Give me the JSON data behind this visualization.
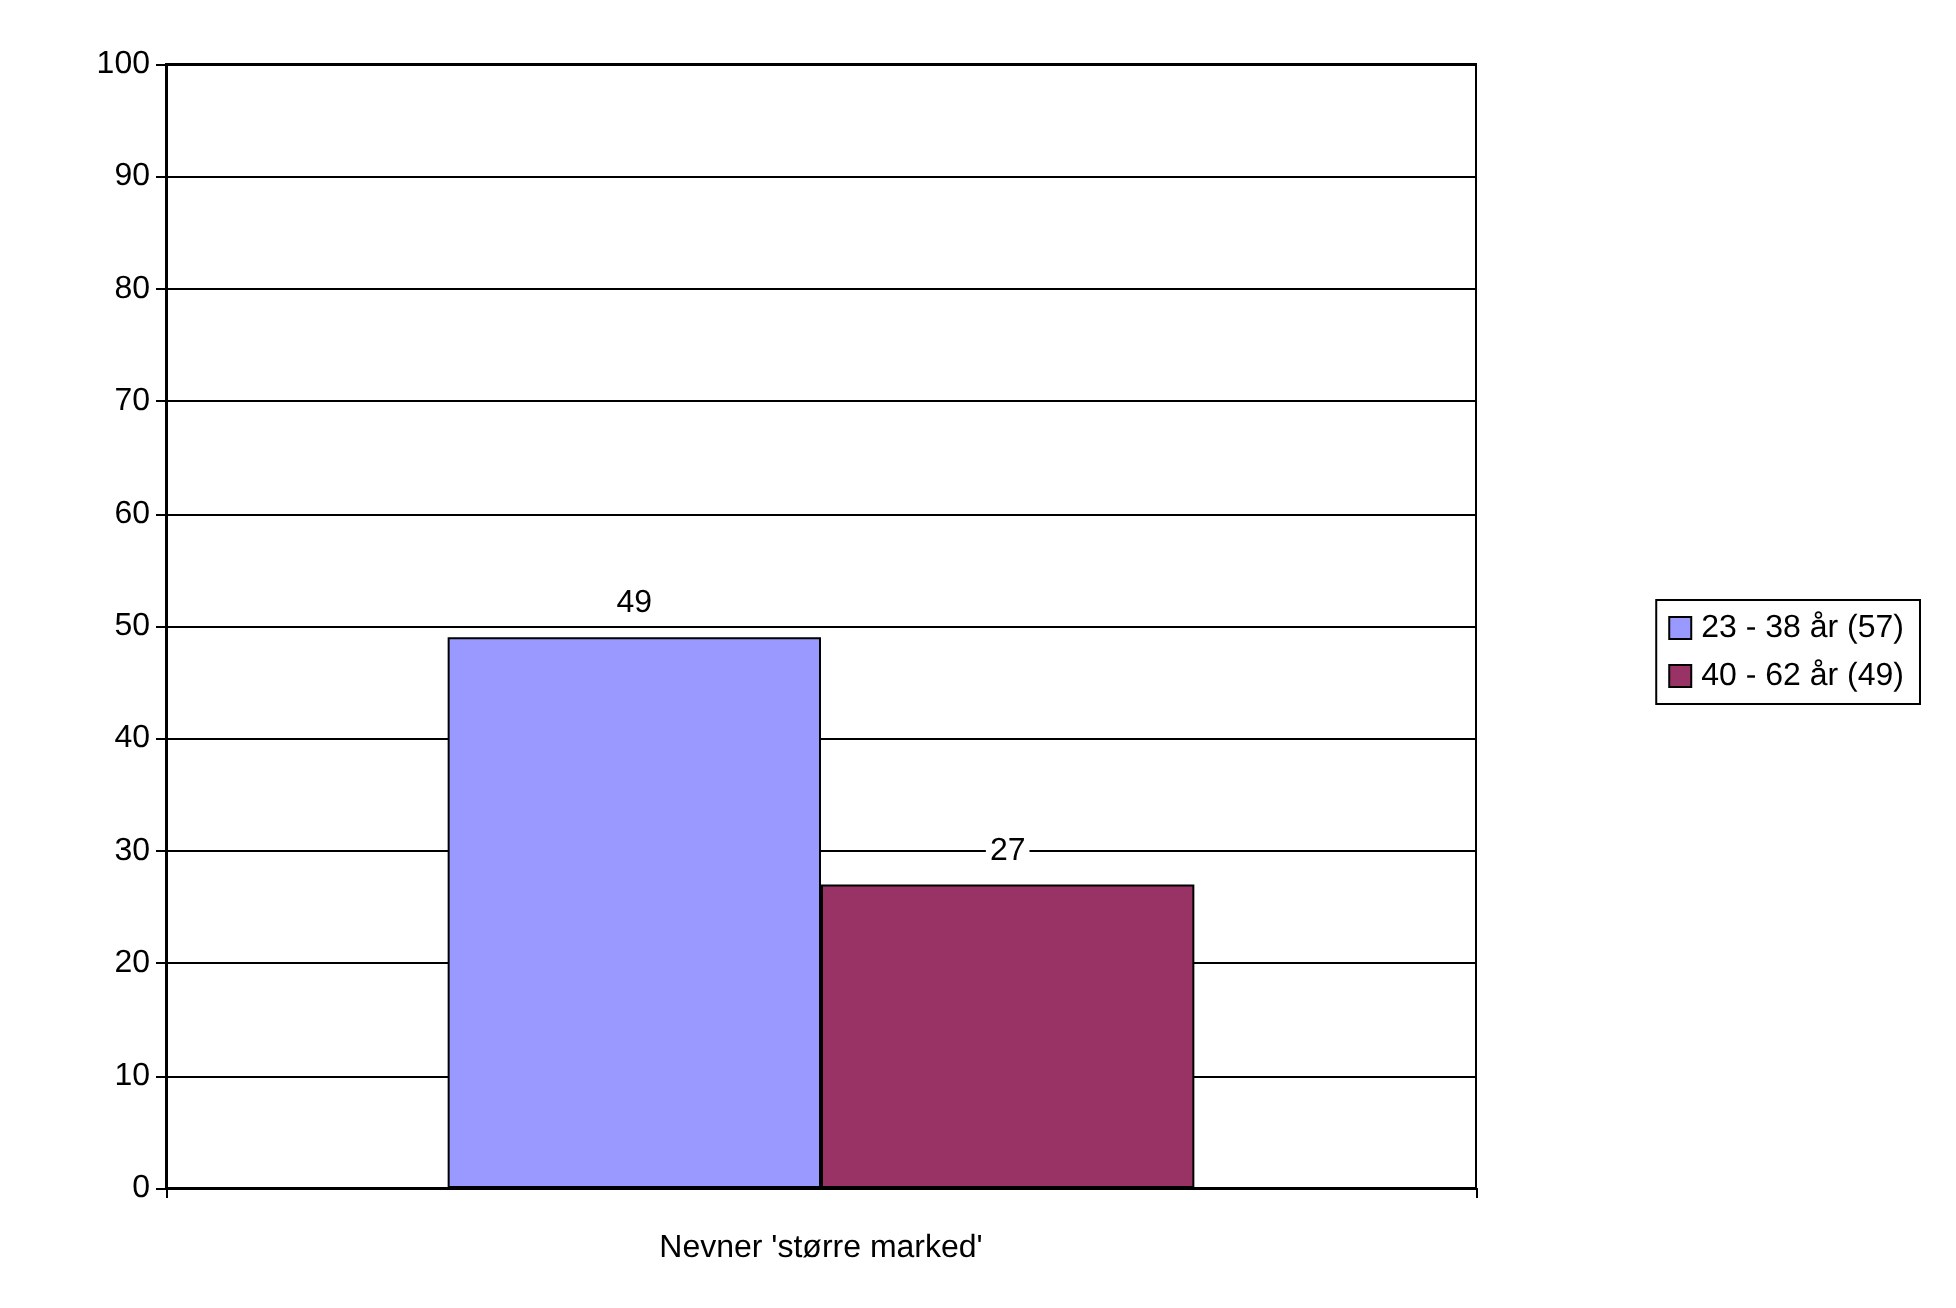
{
  "chart_data": {
    "type": "bar",
    "categories": [
      "Nevner 'større marked'"
    ],
    "series": [
      {
        "name": "23 - 38 år (57)",
        "color": "#9999ff",
        "values": [
          49
        ]
      },
      {
        "name": "40 - 62 år (49)",
        "color": "#993366",
        "values": [
          27
        ]
      }
    ],
    "ylim": [
      0,
      100
    ],
    "yticks": [
      0,
      10,
      20,
      30,
      40,
      50,
      60,
      70,
      80,
      90,
      100
    ],
    "grid": "y",
    "legend": "right",
    "data_labels": true
  }
}
